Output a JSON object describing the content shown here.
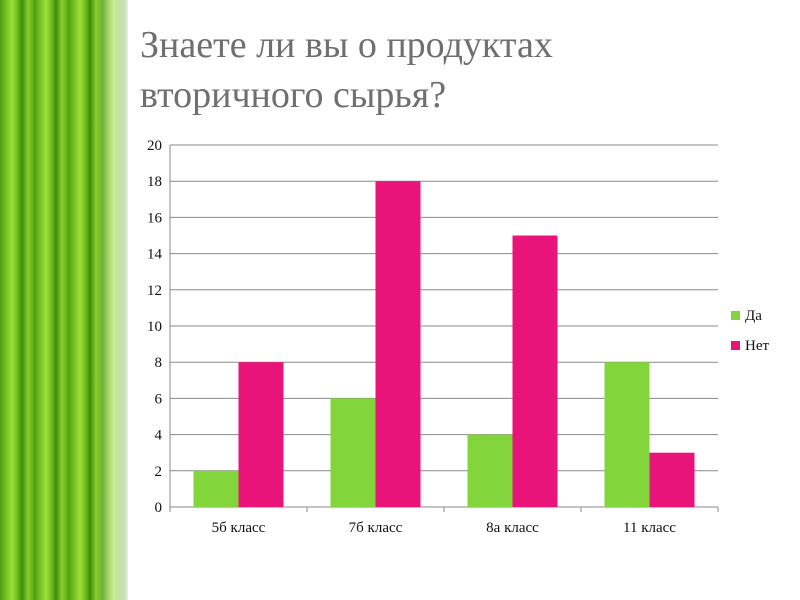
{
  "slide": {
    "title_line1": "Знаете ли вы о продуктах",
    "title_line2": "вторичного сырья?"
  },
  "chart_data": {
    "type": "bar",
    "categories": [
      "5б класс",
      "7б класс",
      "8а класс",
      "11 класс"
    ],
    "series": [
      {
        "name": "Да",
        "values": [
          2,
          6,
          4,
          8
        ],
        "color": "#82d53a"
      },
      {
        "name": "Нет",
        "values": [
          8,
          18,
          15,
          3
        ],
        "color": "#e8147a"
      }
    ],
    "ylim": [
      0,
      20
    ],
    "yticks": [
      0,
      2,
      4,
      6,
      8,
      10,
      12,
      14,
      16,
      18,
      20
    ],
    "grid": true,
    "legend": "right"
  }
}
